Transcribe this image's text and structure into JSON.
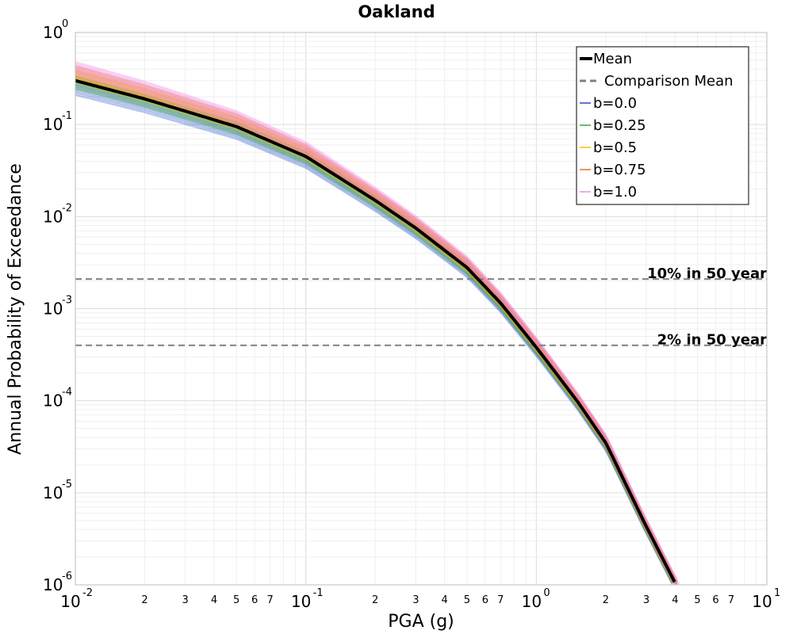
{
  "chart_data": {
    "type": "line",
    "title": "Oakland",
    "xlabel": "PGA (g)",
    "ylabel": "Annual Probability of Exceedance",
    "xscale": "log",
    "yscale": "log",
    "xlim": [
      0.01,
      10
    ],
    "ylim": [
      1e-06,
      1
    ],
    "grid": true,
    "legend_placement": "top-right",
    "x_major_ticks": [
      {
        "value": 0.01,
        "base": "10",
        "exp": "-2"
      },
      {
        "value": 0.1,
        "base": "10",
        "exp": "-1"
      },
      {
        "value": 1,
        "base": "10",
        "exp": "0"
      },
      {
        "value": 10,
        "base": "10",
        "exp": "1"
      }
    ],
    "y_major_ticks": [
      {
        "value": 1,
        "base": "10",
        "exp": "0"
      },
      {
        "value": 0.1,
        "base": "10",
        "exp": "-1"
      },
      {
        "value": 0.01,
        "base": "10",
        "exp": "-2"
      },
      {
        "value": 0.001,
        "base": "10",
        "exp": "-3"
      },
      {
        "value": 0.0001,
        "base": "10",
        "exp": "-4"
      },
      {
        "value": 1e-05,
        "base": "10",
        "exp": "-5"
      },
      {
        "value": 1e-06,
        "base": "10",
        "exp": "-6"
      }
    ],
    "x_minor_tick_labels": [
      "2",
      "3",
      "4",
      "5",
      "6",
      "7"
    ],
    "legend": [
      {
        "label": "Mean",
        "style": "solid-thick",
        "color": "#000000"
      },
      {
        "label": "Comparison Mean",
        "style": "dashed",
        "color": "#808080"
      },
      {
        "label": "b=0.0",
        "style": "solid-thin",
        "color": "#1f4fc4"
      },
      {
        "label": "b=0.25",
        "style": "solid-thin",
        "color": "#3aa63a"
      },
      {
        "label": "b=0.5",
        "style": "solid-thin",
        "color": "#f2c200"
      },
      {
        "label": "b=0.75",
        "style": "solid-thin",
        "color": "#ef6a1e"
      },
      {
        "label": "b=1.0",
        "style": "solid-thin",
        "color": "#f08ae8"
      }
    ],
    "series": [
      {
        "name": "Mean",
        "x": [
          0.01,
          0.02,
          0.05,
          0.1,
          0.2,
          0.3,
          0.5,
          0.7,
          1.0,
          1.5,
          2.0,
          3.0,
          4.0
        ],
        "values": [
          0.3,
          0.19,
          0.095,
          0.045,
          0.015,
          0.0075,
          0.0028,
          0.00115,
          0.00038,
          0.0001,
          3.5e-05,
          4.3e-06,
          1.05e-06
        ]
      },
      {
        "name": "b=0.0",
        "band_factor_low": 0.7,
        "band_factor_high": 1.0
      },
      {
        "name": "b=0.25",
        "band_factor_low": 0.82,
        "band_factor_high": 1.12
      },
      {
        "name": "b=0.5",
        "band_factor_low": 0.95,
        "band_factor_high": 1.3
      },
      {
        "name": "b=0.75",
        "band_factor_low": 1.05,
        "band_factor_high": 1.45
      },
      {
        "name": "b=1.0",
        "band_factor_low": 1.15,
        "band_factor_high": 1.6
      }
    ],
    "reference_lines": [
      {
        "label": "10% in 50 year",
        "y": 0.0021
      },
      {
        "label": "2% in 50 year",
        "y": 0.0004
      }
    ]
  }
}
